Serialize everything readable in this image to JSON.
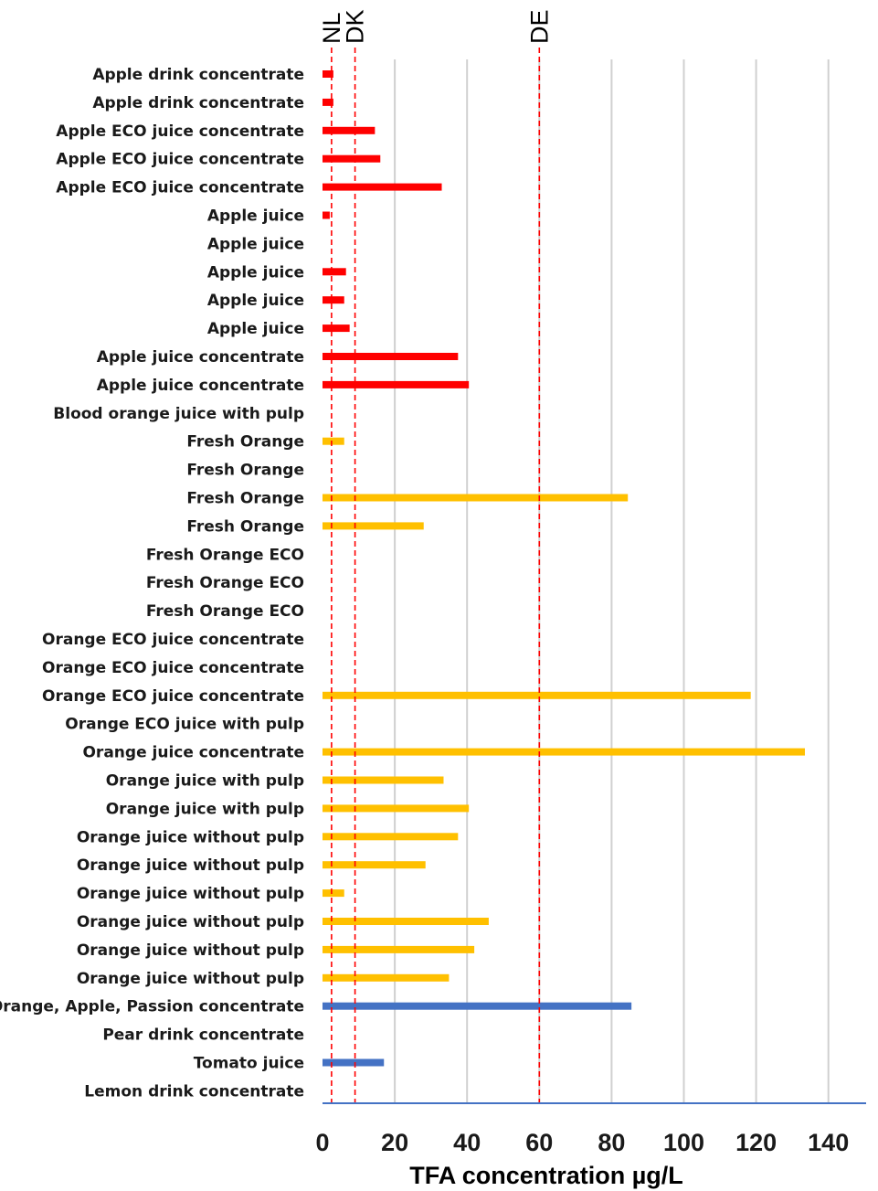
{
  "chart_data": {
    "type": "bar",
    "orientation": "horizontal",
    "xlabel": "TFA concentration µg/L",
    "xlim": [
      0,
      150
    ],
    "xticks": [
      0,
      20,
      40,
      60,
      80,
      100,
      120,
      140
    ],
    "grid": true,
    "colors": {
      "apple": "#ff0000",
      "orange": "#ffc000",
      "other": "#4472c4",
      "reference": "#ff0000",
      "grid": "#d0d0d0",
      "axis": "#4472c4"
    },
    "reference_lines": [
      {
        "label": "NL",
        "value": 2.5
      },
      {
        "label": "DK",
        "value": 9
      },
      {
        "label": "DE",
        "value": 60
      }
    ],
    "categories": [
      "Apple drink concentrate",
      "Apple drink concentrate",
      "Apple ECO juice concentrate",
      "Apple ECO juice concentrate",
      "Apple ECO juice concentrate",
      "Apple juice",
      "Apple juice",
      "Apple juice",
      "Apple juice",
      "Apple juice",
      "Apple juice concentrate",
      "Apple juice concentrate",
      "Blood orange juice with pulp",
      "Fresh Orange",
      "Fresh Orange",
      "Fresh Orange",
      "Fresh Orange",
      "Fresh Orange ECO",
      "Fresh Orange ECO",
      "Fresh Orange ECO",
      "Orange ECO juice concentrate",
      "Orange ECO juice concentrate",
      "Orange ECO juice concentrate",
      "Orange ECO juice with pulp",
      "Orange juice concentrate",
      "Orange juice with pulp",
      "Orange juice with pulp",
      "Orange juice without pulp",
      "Orange juice without pulp",
      "Orange juice without pulp",
      "Orange juice without pulp",
      "Orange juice without pulp",
      "Orange juice without pulp",
      "Orange, Apple, Passion concentrate",
      "Pear drink concentrate",
      "Tomato juice",
      "Lemon drink concentrate"
    ],
    "values": [
      3,
      3,
      14.5,
      16,
      33,
      2,
      0,
      6.5,
      6,
      7.5,
      37.5,
      40.5,
      0,
      6,
      0,
      84.5,
      28,
      0,
      0,
      0,
      0,
      0,
      118.5,
      0,
      133.5,
      33.5,
      40.5,
      37.5,
      28.5,
      6,
      46,
      42,
      35,
      85.5,
      0,
      17,
      0
    ],
    "groups": [
      "apple",
      "apple",
      "apple",
      "apple",
      "apple",
      "apple",
      "apple",
      "apple",
      "apple",
      "apple",
      "apple",
      "apple",
      "orange",
      "orange",
      "orange",
      "orange",
      "orange",
      "orange",
      "orange",
      "orange",
      "orange",
      "orange",
      "orange",
      "orange",
      "orange",
      "orange",
      "orange",
      "orange",
      "orange",
      "orange",
      "orange",
      "orange",
      "orange",
      "other",
      "other",
      "other",
      "other"
    ]
  }
}
